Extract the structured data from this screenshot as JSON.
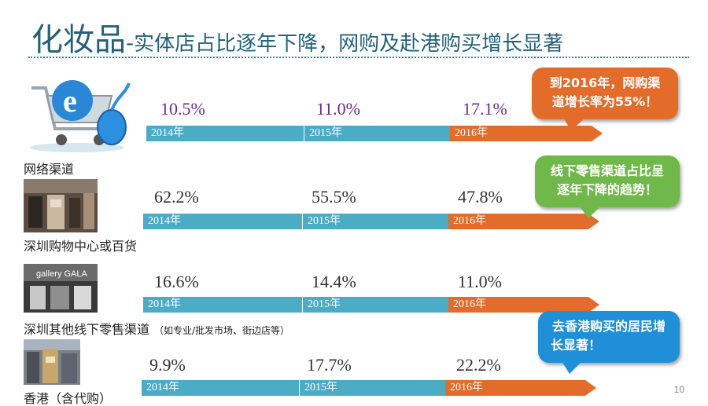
{
  "title": {
    "main": "化妆品",
    "separator": "-",
    "sub": "实体店占比逐年下降，网购及赴港购买增长显著"
  },
  "channels": [
    {
      "label": "网络渠道",
      "note": "",
      "years": [
        "2014年",
        "2015年",
        "2016年"
      ],
      "values": [
        "10.5%",
        "11.0%",
        "17.1%"
      ],
      "value_color": "#6a2c91",
      "thumb_icon": "shopping-cart-icon"
    },
    {
      "label": "深圳购物中心或百货",
      "note": "",
      "years": [
        "2014年",
        "2015年",
        "2016年"
      ],
      "values": [
        "62.2%",
        "55.5%",
        "47.8%"
      ],
      "value_color": "#333333",
      "thumb_icon": "mall-photo"
    },
    {
      "label": "深圳其他线下零售渠道",
      "note": "（如专业/批发市场、街边店等）",
      "years": [
        "2014年",
        "2015年",
        "2016年"
      ],
      "values": [
        "16.6%",
        "14.4%",
        "11.0%"
      ],
      "value_color": "#333333",
      "thumb_icon": "storefront-photo",
      "thumb_sign": "gallery GALA"
    },
    {
      "label": "香港（含代购）",
      "note": "",
      "years": [
        "2014年",
        "2015年",
        "2016年"
      ],
      "values": [
        "9.9%",
        "17.7%",
        "22.2%"
      ],
      "value_color": "#333333",
      "thumb_icon": "hong-kong-street-photo"
    }
  ],
  "callouts": [
    {
      "text_line1": "到2016年，网购渠",
      "text_line2": "道增长率为55%！",
      "color": "#e46c2a"
    },
    {
      "text_line1": "线下零售渠道占比呈",
      "text_line2": "逐年下降的趋势！",
      "color": "#71b84a"
    },
    {
      "text_line1": "去香港购买的居民增",
      "text_line2": "长显著！",
      "color": "#1f8fd8"
    }
  ],
  "colors": {
    "title": "#23627a",
    "bar_blue": "#4bacc6",
    "bar_orange": "#e46c2a"
  },
  "page_number": "10"
}
